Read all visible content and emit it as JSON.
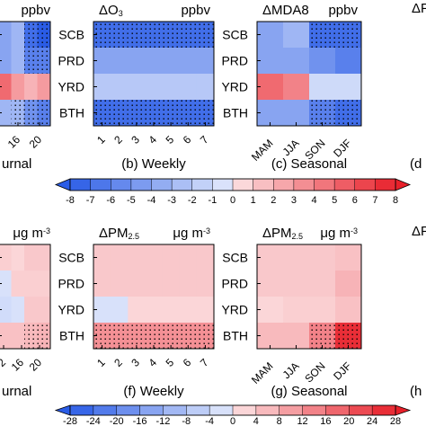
{
  "colors": {
    "cmap_neg": "#2a5ce6",
    "cmap_mid": "#ffffff",
    "cmap_pos": "#e8202a",
    "stipple": "#000000"
  },
  "chart_data": [
    {
      "type": "heatmap",
      "row": "o3",
      "col": "diurnal",
      "partial": true,
      "caption": "urnal",
      "unit": "ppbv",
      "title": "",
      "categories": [
        "16",
        "20"
      ],
      "rows": [
        "SCB",
        "PRD",
        "YRD",
        "BTH"
      ],
      "values": [
        [
          -4,
          -3,
          -7,
          -8
        ],
        [
          -4,
          -3,
          -6,
          -6
        ],
        [
          5,
          3,
          2,
          3
        ],
        [
          -3,
          -3,
          -5,
          -6
        ]
      ],
      "stipple": [
        [
          0,
          0,
          1,
          1
        ],
        [
          0,
          0,
          1,
          1
        ],
        [
          0,
          0,
          0,
          0
        ],
        [
          0,
          1,
          1,
          1
        ]
      ]
    },
    {
      "type": "heatmap",
      "row": "o3",
      "col": "weekly",
      "title": "ΔO3",
      "unit": "ppbv",
      "caption": "(b) Weekly",
      "categories": [
        "1",
        "2",
        "3",
        "4",
        "5",
        "6",
        "7"
      ],
      "rows": [
        "SCB",
        "PRD",
        "YRD",
        "BTH"
      ],
      "values": [
        [
          -7,
          -7,
          -7,
          -7,
          -7,
          -7,
          -7
        ],
        [
          -4,
          -4,
          -4,
          -4,
          -4,
          -4,
          -4
        ],
        [
          -2,
          -2,
          -2,
          -2,
          -2,
          -2,
          -2
        ],
        [
          -7,
          -7,
          -7,
          -7,
          -7,
          -7,
          -7
        ]
      ],
      "stipple": [
        [
          1,
          1,
          1,
          1,
          1,
          1,
          1
        ],
        [
          0,
          0,
          0,
          0,
          0,
          0,
          0
        ],
        [
          0,
          0,
          0,
          0,
          0,
          0,
          0
        ],
        [
          1,
          1,
          1,
          1,
          1,
          1,
          1
        ]
      ]
    },
    {
      "type": "heatmap",
      "row": "o3",
      "col": "seasonal",
      "title": "ΔMDA8",
      "unit": "ppbv",
      "caption": "(c) Seasonal",
      "categories": [
        "MAM",
        "JJA",
        "SON",
        "DJF"
      ],
      "rows": [
        "SCB",
        "PRD",
        "YRD",
        "BTH"
      ],
      "values": [
        [
          -4,
          -3,
          -7,
          -7
        ],
        [
          -4,
          -4,
          -5,
          -6
        ],
        [
          5,
          4,
          -1,
          -1
        ],
        [
          -4,
          -4,
          -6,
          -7
        ]
      ],
      "stipple": [
        [
          0,
          0,
          1,
          1
        ],
        [
          0,
          0,
          0,
          0
        ],
        [
          0,
          0,
          0,
          0
        ],
        [
          0,
          0,
          1,
          1
        ]
      ]
    },
    {
      "type": "heatmap",
      "row": "pm",
      "col": "diurnal",
      "partial": true,
      "caption": "urnal",
      "unit": "μg m-3",
      "title": "",
      "categories": [
        "2",
        "16",
        "20"
      ],
      "rows": [
        "SCB",
        "PRD",
        "YRD",
        "BTH"
      ],
      "values": [
        [
          3,
          2,
          4,
          4
        ],
        [
          -2,
          3,
          3,
          3
        ],
        [
          -3,
          -2,
          4,
          4
        ],
        [
          5,
          5,
          6,
          7
        ]
      ],
      "stipple": [
        [
          0,
          0,
          0,
          0
        ],
        [
          0,
          0,
          0,
          0
        ],
        [
          0,
          0,
          0,
          0
        ],
        [
          0,
          0,
          1,
          1
        ]
      ]
    },
    {
      "type": "heatmap",
      "row": "pm",
      "col": "weekly",
      "title": "ΔPM2.5",
      "unit": "μg m-3",
      "caption": "(f) Weekly",
      "categories": [
        "1",
        "2",
        "3",
        "4",
        "5",
        "6",
        "7"
      ],
      "rows": [
        "SCB",
        "PRD",
        "YRD",
        "BTH"
      ],
      "values": [
        [
          4,
          4,
          4,
          4,
          4,
          4,
          4
        ],
        [
          4,
          4,
          4,
          4,
          4,
          4,
          4
        ],
        [
          -2,
          -2,
          2,
          2,
          2,
          2,
          2
        ],
        [
          12,
          12,
          12,
          12,
          12,
          12,
          12
        ]
      ],
      "stipple": [
        [
          0,
          0,
          0,
          0,
          0,
          0,
          0
        ],
        [
          0,
          0,
          0,
          0,
          0,
          0,
          0
        ],
        [
          0,
          0,
          0,
          0,
          0,
          0,
          0
        ],
        [
          1,
          1,
          1,
          1,
          1,
          1,
          1
        ]
      ]
    },
    {
      "type": "heatmap",
      "row": "pm",
      "col": "seasonal",
      "title": "ΔPM2.5",
      "unit": "μg m-3",
      "caption": "(g) Seasonal",
      "categories": [
        "MAM",
        "JJA",
        "SON",
        "DJF"
      ],
      "rows": [
        "SCB",
        "PRD",
        "YRD",
        "BTH"
      ],
      "values": [
        [
          4,
          4,
          4,
          5
        ],
        [
          4,
          4,
          4,
          7
        ],
        [
          2,
          3,
          3,
          5
        ],
        [
          6,
          6,
          14,
          26
        ]
      ],
      "stipple": [
        [
          0,
          0,
          0,
          0
        ],
        [
          0,
          0,
          0,
          0
        ],
        [
          0,
          0,
          0,
          0
        ],
        [
          0,
          0,
          1,
          1
        ]
      ]
    },
    {
      "type": "colorbar",
      "row": "o3",
      "ticks": [
        "-8",
        "-7",
        "-6",
        "-5",
        "-4",
        "-3",
        "-2",
        "-1",
        "0",
        "1",
        "2",
        "3",
        "4",
        "5",
        "6",
        "7",
        "8"
      ],
      "range": [
        -8,
        8
      ],
      "step": 1
    },
    {
      "type": "colorbar",
      "row": "pm",
      "ticks": [
        "-28",
        "-24",
        "-20",
        "-16",
        "-12",
        "-8",
        "-4",
        "0",
        "4",
        "8",
        "12",
        "16",
        "20",
        "24",
        "28"
      ],
      "range": [
        -28,
        28
      ],
      "step": 4
    }
  ],
  "edge_fragments": {
    "top_right_header": "ΔF",
    "top_right_caption": "(d",
    "bottom_right_header": "ΔF",
    "bottom_right_caption": "(h"
  }
}
